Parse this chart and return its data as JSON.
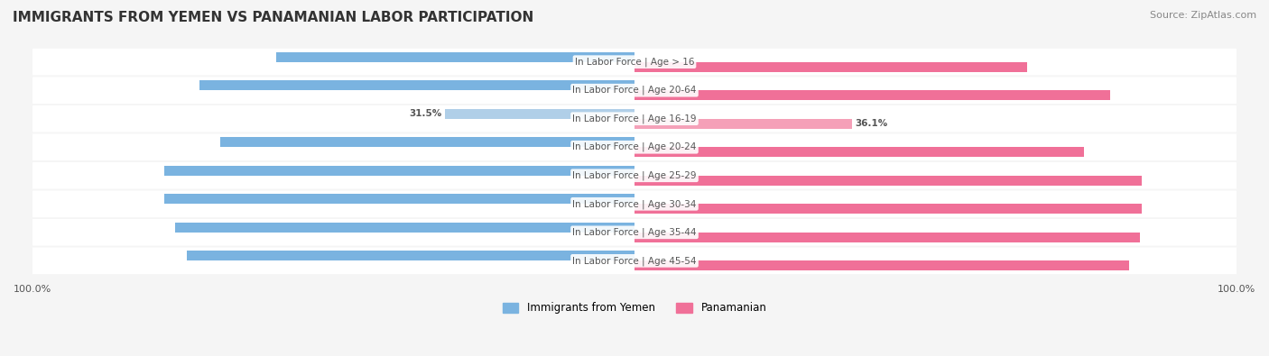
{
  "title": "IMMIGRANTS FROM YEMEN VS PANAMANIAN LABOR PARTICIPATION",
  "source": "Source: ZipAtlas.com",
  "categories": [
    "In Labor Force | Age > 16",
    "In Labor Force | Age 20-64",
    "In Labor Force | Age 16-19",
    "In Labor Force | Age 20-24",
    "In Labor Force | Age 25-29",
    "In Labor Force | Age 30-34",
    "In Labor Force | Age 35-44",
    "In Labor Force | Age 45-54"
  ],
  "yemen_values": [
    59.6,
    72.3,
    31.5,
    68.9,
    78.2,
    78.2,
    76.3,
    74.4
  ],
  "panama_values": [
    65.3,
    79.1,
    36.1,
    74.7,
    84.2,
    84.2,
    84.0,
    82.2
  ],
  "yemen_color": "#7ab3e0",
  "panama_color": "#f07098",
  "yemen_color_light": "#b0cfe8",
  "panama_color_light": "#f5a0b8",
  "bar_height": 0.35,
  "background_color": "#f5f5f5",
  "row_bg_color": "#ececec",
  "legend_label_yemen": "Immigrants from Yemen",
  "legend_label_panama": "Panamanian",
  "axis_label_left": "100.0%",
  "axis_label_right": "100.0%",
  "max_value": 100.0
}
